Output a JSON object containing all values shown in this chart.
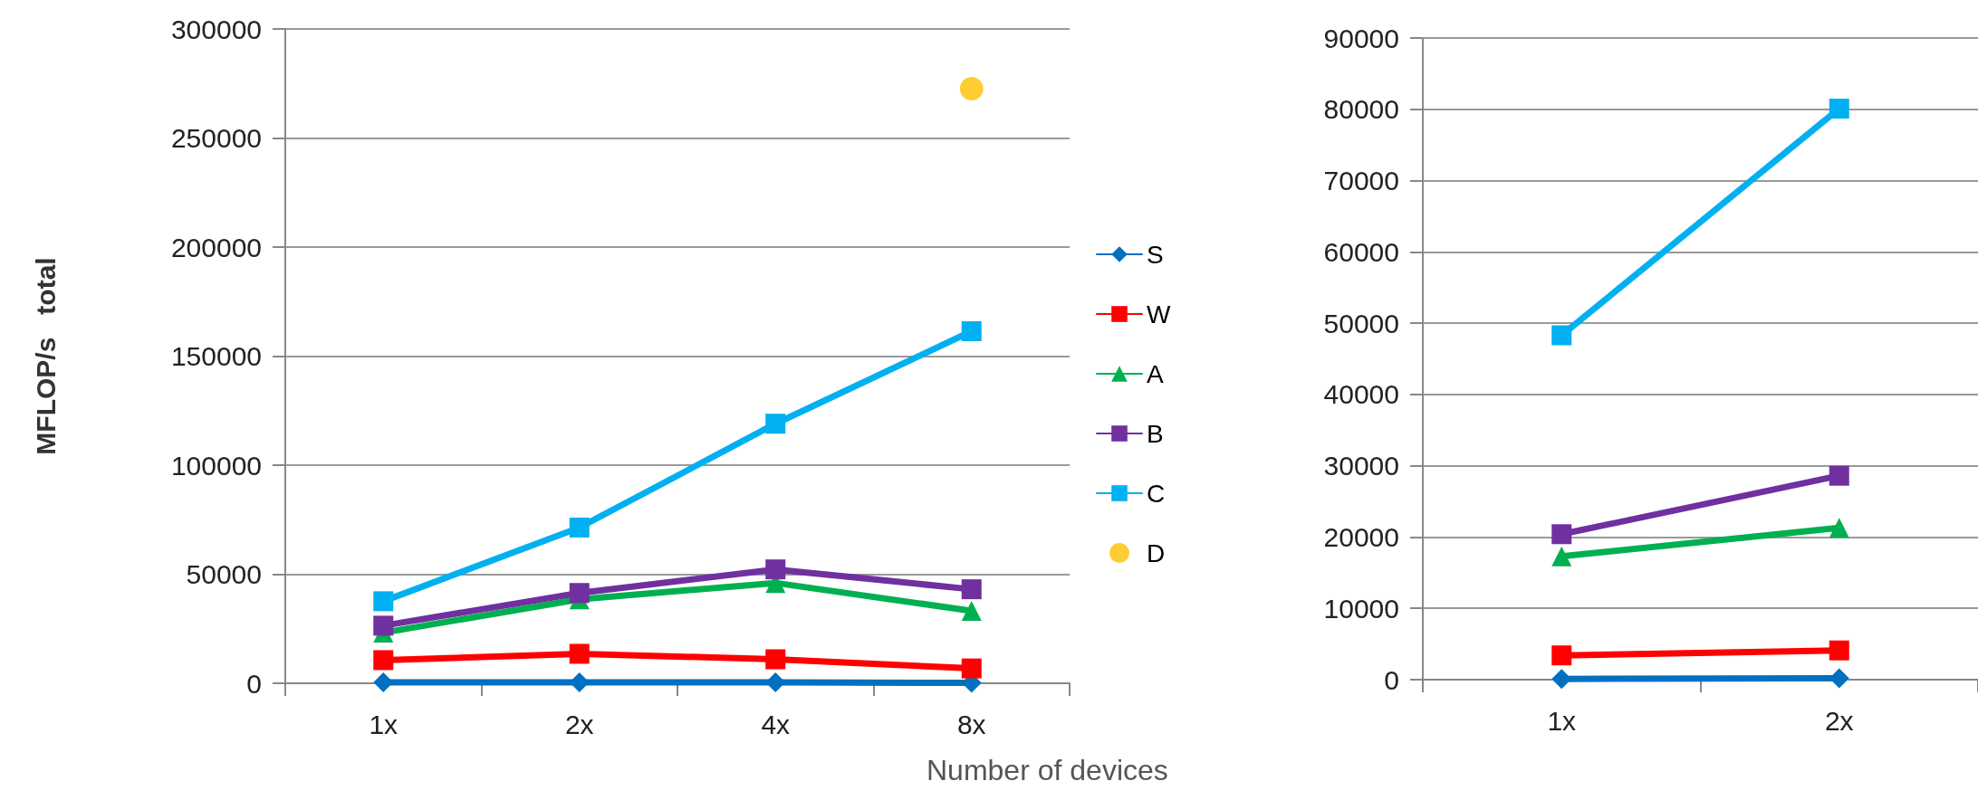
{
  "chart_data": [
    {
      "type": "line",
      "ylabel": "MFLOP/s   total",
      "xlabel": "Number of devices",
      "categories": [
        "1x",
        "2x",
        "4x",
        "8x"
      ],
      "ylim": [
        0,
        300000
      ],
      "yticks": [
        0,
        50000,
        100000,
        150000,
        200000,
        250000,
        300000
      ],
      "grid": "y",
      "legend": "right",
      "line_style": "solid",
      "series": [
        {
          "name": "S",
          "color": "#0070c0",
          "marker": "diamond",
          "values": [
            400,
            400,
            400,
            200
          ]
        },
        {
          "name": "W",
          "color": "#ff0000",
          "marker": "square",
          "values": [
            10600,
            13500,
            11000,
            6800
          ]
        },
        {
          "name": "A",
          "color": "#00b050",
          "marker": "triangle",
          "values": [
            23200,
            38500,
            46000,
            33200
          ]
        },
        {
          "name": "B",
          "color": "#7030a0",
          "marker": "square",
          "values": [
            26400,
            41400,
            52200,
            43100
          ]
        },
        {
          "name": "C",
          "color": "#00b0f0",
          "marker": "square",
          "values": [
            37600,
            71400,
            119000,
            161400
          ]
        },
        {
          "name": "D",
          "type": "scatter",
          "color": "#ffc000",
          "marker": "circle",
          "values": [
            null,
            null,
            null,
            272600
          ]
        }
      ]
    },
    {
      "type": "line",
      "categories": [
        "1x",
        "2x"
      ],
      "ylim": [
        0,
        90000
      ],
      "yticks": [
        0,
        10000,
        20000,
        30000,
        40000,
        50000,
        60000,
        70000,
        80000,
        90000
      ],
      "grid": "y",
      "line_style": "solid",
      "series": [
        {
          "color": "#0070c0",
          "marker": "diamond",
          "values": [
            100,
            200
          ]
        },
        {
          "color": "#ff0000",
          "marker": "square",
          "values": [
            3400,
            4100
          ]
        },
        {
          "color": "#00b050",
          "marker": "triangle",
          "values": [
            17300,
            21300
          ]
        },
        {
          "color": "#7030a0",
          "marker": "square",
          "values": [
            20400,
            28600
          ]
        },
        {
          "color": "#00b0f0",
          "marker": "square",
          "values": [
            48300,
            80100
          ]
        }
      ]
    }
  ]
}
